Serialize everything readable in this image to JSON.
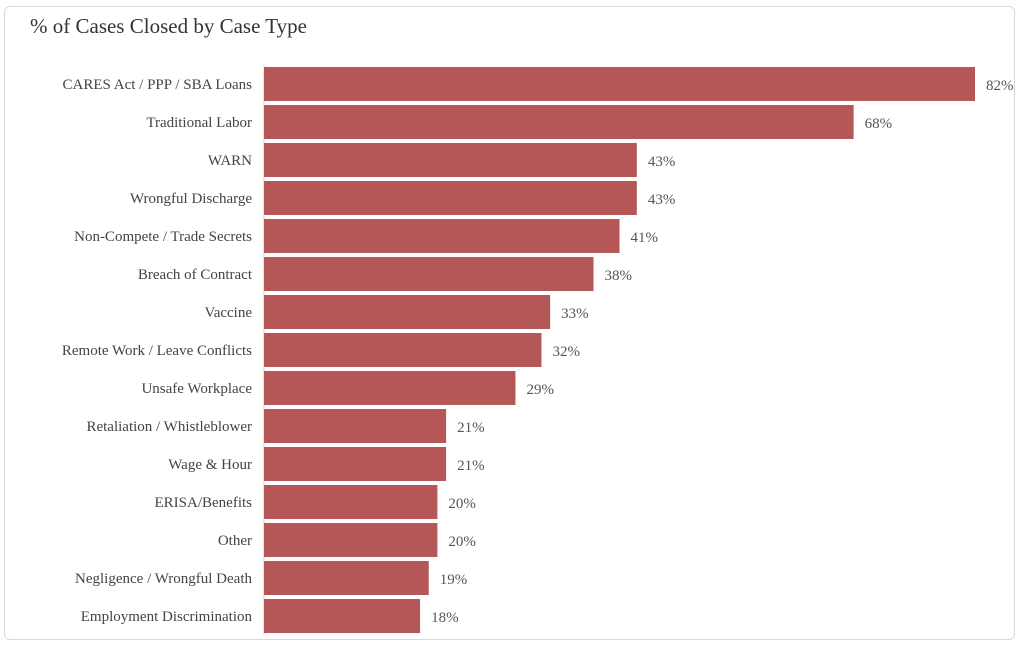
{
  "chart_data": {
    "type": "bar",
    "orientation": "horizontal",
    "title": "% of Cases Closed by Case Type",
    "xlabel": "",
    "ylabel": "",
    "xlim": [
      0,
      82
    ],
    "grid": false,
    "legend": "none",
    "bar_color": "#b55756",
    "categories": [
      "CARES Act / PPP / SBA Loans",
      "Traditional Labor",
      "WARN",
      "Wrongful Discharge",
      "Non-Compete / Trade Secrets",
      "Breach of Contract",
      "Vaccine",
      "Remote Work / Leave Conflicts",
      "Unsafe Workplace",
      "Retaliation / Whistleblower",
      "Wage & Hour",
      "ERISA/Benefits",
      "Other",
      "Negligence / Wrongful Death",
      "Employment Discrimination"
    ],
    "values": [
      82,
      68,
      43,
      43,
      41,
      38,
      33,
      32,
      29,
      21,
      21,
      20,
      20,
      19,
      18
    ],
    "value_labels": [
      "82%",
      "68%",
      "43%",
      "43%",
      "41%",
      "38%",
      "33%",
      "32%",
      "29%",
      "21%",
      "21%",
      "20%",
      "20%",
      "19%",
      "18%"
    ]
  }
}
